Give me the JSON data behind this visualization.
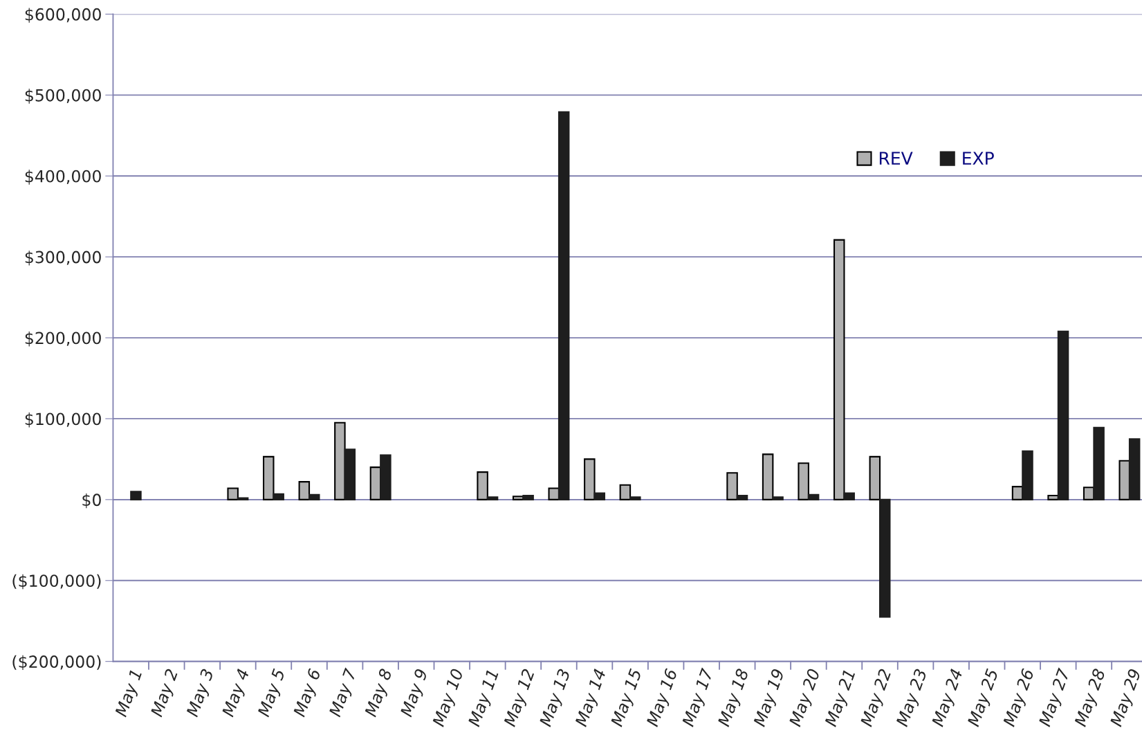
{
  "chart_data": {
    "type": "bar",
    "categories": [
      "May 1",
      "May 2",
      "May 3",
      "May 4",
      "May 5",
      "May 6",
      "May 7",
      "May 8",
      "May 9",
      "May 10",
      "May 11",
      "May 12",
      "May 13",
      "May 14",
      "May 15",
      "May 16",
      "May 17",
      "May 18",
      "May 19",
      "May 20",
      "May 21",
      "May 22",
      "May 23",
      "May 24",
      "May 25",
      "May 26",
      "May 27",
      "May 28",
      "May 29"
    ],
    "series": [
      {
        "name": "REV",
        "color": "#b0b0b0",
        "values": [
          null,
          null,
          null,
          14000,
          53000,
          22000,
          95000,
          40000,
          null,
          null,
          34000,
          4000,
          14000,
          50000,
          18000,
          null,
          null,
          33000,
          56000,
          45000,
          321000,
          53000,
          null,
          null,
          null,
          16000,
          5000,
          15000,
          48000
        ]
      },
      {
        "name": "EXP",
        "color": "#1e1e1e",
        "values": [
          10000,
          null,
          null,
          2000,
          7000,
          6000,
          62000,
          55000,
          null,
          null,
          3000,
          5000,
          479000,
          8000,
          3000,
          null,
          null,
          5000,
          3000,
          6000,
          8000,
          -145000,
          null,
          null,
          null,
          60000,
          208000,
          89000,
          75000
        ]
      }
    ],
    "ylim": [
      -200000,
      600000
    ],
    "yticks": [
      {
        "value": -200000,
        "label": "($200,000)"
      },
      {
        "value": -100000,
        "label": "($100,000)"
      },
      {
        "value": 0,
        "label": "$0"
      },
      {
        "value": 100000,
        "label": "$100,000"
      },
      {
        "value": 200000,
        "label": "$200,000"
      },
      {
        "value": 300000,
        "label": "$300,000"
      },
      {
        "value": 400000,
        "label": "$400,000"
      },
      {
        "value": 500000,
        "label": "$500,000"
      },
      {
        "value": 600000,
        "label": "$600,000"
      }
    ],
    "grid": "y",
    "legend": "top right"
  }
}
